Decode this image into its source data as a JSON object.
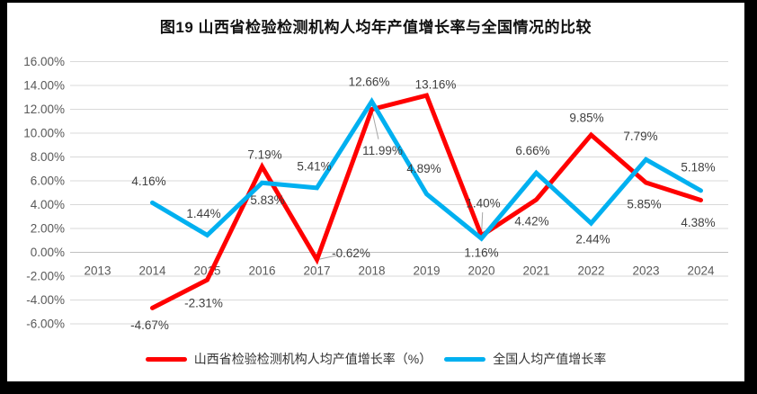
{
  "title": "图19  山西省检验检测机构人均年产值增长率与全国情况的比较",
  "colors": {
    "frame": "#000000",
    "background": "#FFFFFF",
    "gridline": "#D9D9D9",
    "zero_axis": "#BFBFBF",
    "axis_text": "#595959",
    "data_label_text": "#3F3F3F",
    "leader_line": "#A6A6A6",
    "series_shanxi": "#FF0000",
    "series_national": "#00B0F0"
  },
  "chart_data": {
    "type": "line",
    "title": "图19  山西省检验检测机构人均年产值增长率与全国情况的比较",
    "categories": [
      "2013",
      "2014",
      "2015",
      "2016",
      "2017",
      "2018",
      "2019",
      "2020",
      "2021",
      "2022",
      "2023",
      "2024"
    ],
    "xlabel": "",
    "ylabel": "",
    "ylim": [
      -6,
      16
    ],
    "grid": true,
    "legend_position": "bottom",
    "y_ticks": [
      {
        "value": 16,
        "label": "16.00%"
      },
      {
        "value": 14,
        "label": "14.00%"
      },
      {
        "value": 12,
        "label": "12.00%"
      },
      {
        "value": 10,
        "label": "10.00%"
      },
      {
        "value": 8,
        "label": "8.00%"
      },
      {
        "value": 6,
        "label": "6.00%"
      },
      {
        "value": 4,
        "label": "4.00%"
      },
      {
        "value": 2,
        "label": "2.00%"
      },
      {
        "value": 0,
        "label": "0.00%"
      },
      {
        "value": -2,
        "label": "-2.00%"
      },
      {
        "value": -4,
        "label": "-4.00%"
      },
      {
        "value": -6,
        "label": "-6.00%"
      }
    ],
    "series": [
      {
        "name": "山西省检验检测机构人均产值增长率（%）",
        "color": "#FF0000",
        "values": [
          null,
          -4.67,
          -2.31,
          7.19,
          -0.62,
          11.99,
          13.16,
          1.4,
          4.42,
          9.85,
          5.85,
          4.38
        ],
        "data_labels": [
          null,
          "-4.67%",
          "-2.31%",
          "7.19%",
          "-0.62%",
          "11.99%",
          "13.16%",
          "1.40%",
          "4.42%",
          "9.85%",
          "5.85%",
          "4.38%"
        ],
        "label_offsets": [
          null,
          [
            -3,
            19
          ],
          [
            -4,
            26
          ],
          [
            3,
            -13
          ],
          [
            38,
            -7
          ],
          [
            12,
            46
          ],
          [
            10,
            -12
          ],
          [
            2,
            -36
          ],
          [
            -5,
            24
          ],
          [
            -5,
            -19
          ],
          [
            -2,
            24
          ],
          [
            -3,
            25
          ]
        ],
        "leader_lines": [
          false,
          false,
          false,
          false,
          true,
          true,
          false,
          true,
          false,
          false,
          false,
          false
        ]
      },
      {
        "name": "全国人均产值增长率",
        "color": "#00B0F0",
        "values": [
          null,
          4.16,
          1.44,
          5.83,
          5.41,
          12.66,
          4.89,
          1.16,
          6.66,
          2.44,
          7.79,
          5.18
        ],
        "data_labels": [
          null,
          "4.16%",
          "1.44%",
          "5.83%",
          "5.41%",
          "12.66%",
          "4.89%",
          "1.16%",
          "6.66%",
          "2.44%",
          "7.79%",
          "5.18%"
        ],
        "label_offsets": [
          null,
          [
            -4,
            -24
          ],
          [
            -4,
            -24
          ],
          [
            6,
            19
          ],
          [
            -3,
            -24
          ],
          [
            -3,
            -22
          ],
          [
            -3,
            -28
          ],
          [
            0,
            16
          ],
          [
            -4,
            -25
          ],
          [
            2,
            18
          ],
          [
            -6,
            -26
          ],
          [
            -3,
            -26
          ]
        ],
        "leader_lines": [
          false,
          false,
          false,
          false,
          false,
          false,
          false,
          false,
          false,
          false,
          false,
          false
        ]
      }
    ]
  },
  "legend": {
    "items": [
      {
        "label": "山西省检验检测机构人均产值增长率（%）",
        "color": "#FF0000"
      },
      {
        "label": "全国人均产值增长率",
        "color": "#00B0F0"
      }
    ]
  }
}
